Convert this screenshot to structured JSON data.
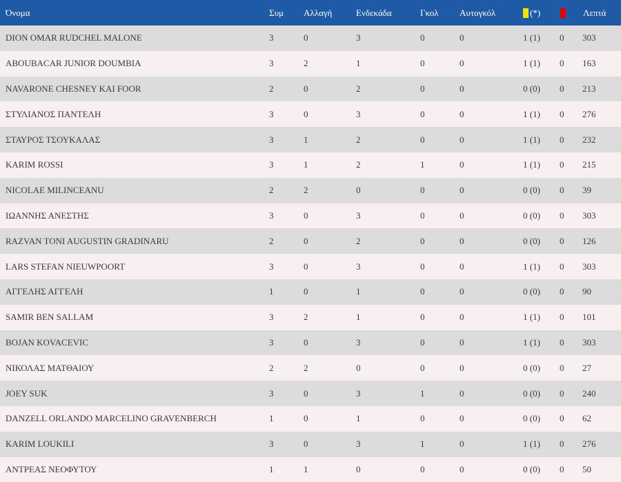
{
  "columns": {
    "name": "Όνομα",
    "apps": "Συμ",
    "sub": "Αλλαγή",
    "start": "Ενδεκάδα",
    "goals": "Γκολ",
    "own_goals": "Αυτογκόλ",
    "yellow_suffix": "(*)",
    "yellow_icon": "yellow-card-icon",
    "red_icon": "red-card-icon",
    "minutes": "Λεπτά"
  },
  "colors": {
    "header_bg": "#1e5aa6",
    "row_even": "#dcdcdc",
    "row_odd": "#f8eff0",
    "yellow_card": "#f0e400",
    "red_card": "#e60000"
  },
  "players": [
    {
      "name": "DION OMAR RUDCHEL MALONE",
      "apps": "3",
      "sub": "0",
      "start": "3",
      "goals": "0",
      "own": "0",
      "yellow": "1 (1)",
      "red": "0",
      "min": "303"
    },
    {
      "name": "ABOUBACAR JUNIOR DOUMBIA",
      "apps": "3",
      "sub": "2",
      "start": "1",
      "goals": "0",
      "own": "0",
      "yellow": "1 (1)",
      "red": "0",
      "min": "163"
    },
    {
      "name": "NAVARONE CHESNEY KAI FOOR",
      "apps": "2",
      "sub": "0",
      "start": "2",
      "goals": "0",
      "own": "0",
      "yellow": "0 (0)",
      "red": "0",
      "min": "213"
    },
    {
      "name": "ΣΤΥΛΙΑΝΟΣ ΠΑΝΤΕΛΗ",
      "apps": "3",
      "sub": "0",
      "start": "3",
      "goals": "0",
      "own": "0",
      "yellow": "1 (1)",
      "red": "0",
      "min": "276"
    },
    {
      "name": "ΣΤΑΥΡΟΣ ΤΣΟΥΚΑΛΑΣ",
      "apps": "3",
      "sub": "1",
      "start": "2",
      "goals": "0",
      "own": "0",
      "yellow": "1 (1)",
      "red": "0",
      "min": "232"
    },
    {
      "name": "KARIM ROSSI",
      "apps": "3",
      "sub": "1",
      "start": "2",
      "goals": "1",
      "own": "0",
      "yellow": "1 (1)",
      "red": "0",
      "min": "215"
    },
    {
      "name": "NICOLAE MILINCEANU",
      "apps": "2",
      "sub": "2",
      "start": "0",
      "goals": "0",
      "own": "0",
      "yellow": "0 (0)",
      "red": "0",
      "min": "39"
    },
    {
      "name": "ΙΩΑΝΝΗΣ ΑΝΕΣΤΗΣ",
      "apps": "3",
      "sub": "0",
      "start": "3",
      "goals": "0",
      "own": "0",
      "yellow": "0 (0)",
      "red": "0",
      "min": "303"
    },
    {
      "name": "RAZVAN TONI AUGUSTIN GRADINARU",
      "apps": "2",
      "sub": "0",
      "start": "2",
      "goals": "0",
      "own": "0",
      "yellow": "0 (0)",
      "red": "0",
      "min": "126"
    },
    {
      "name": "LARS STEFAN NIEUWPOORT",
      "apps": "3",
      "sub": "0",
      "start": "3",
      "goals": "0",
      "own": "0",
      "yellow": "1 (1)",
      "red": "0",
      "min": "303"
    },
    {
      "name": "ΑΓΓΕΛΗΣ ΑΓΓΕΛΗ",
      "apps": "1",
      "sub": "0",
      "start": "1",
      "goals": "0",
      "own": "0",
      "yellow": "0 (0)",
      "red": "0",
      "min": "90"
    },
    {
      "name": "SAMIR BEN SALLAM",
      "apps": "3",
      "sub": "2",
      "start": "1",
      "goals": "0",
      "own": "0",
      "yellow": "1 (1)",
      "red": "0",
      "min": "101"
    },
    {
      "name": "BOJAN KOVACEVIC",
      "apps": "3",
      "sub": "0",
      "start": "3",
      "goals": "0",
      "own": "0",
      "yellow": "1 (1)",
      "red": "0",
      "min": "303"
    },
    {
      "name": "ΝΙΚΟΛΑΣ ΜΑΤΘΑΙΟΥ",
      "apps": "2",
      "sub": "2",
      "start": "0",
      "goals": "0",
      "own": "0",
      "yellow": "0 (0)",
      "red": "0",
      "min": "27"
    },
    {
      "name": "JOEY SUK",
      "apps": "3",
      "sub": "0",
      "start": "3",
      "goals": "1",
      "own": "0",
      "yellow": "0 (0)",
      "red": "0",
      "min": "240"
    },
    {
      "name": "DANZELL ORLANDO MARCELINO GRAVENBERCH",
      "apps": "1",
      "sub": "0",
      "start": "1",
      "goals": "0",
      "own": "0",
      "yellow": "0 (0)",
      "red": "0",
      "min": "62"
    },
    {
      "name": "KARIM LOUKILI",
      "apps": "3",
      "sub": "0",
      "start": "3",
      "goals": "1",
      "own": "0",
      "yellow": "1 (1)",
      "red": "0",
      "min": "276"
    },
    {
      "name": "ΑΝΤΡΕΑΣ ΝΕΟΦΥΤΟΥ",
      "apps": "1",
      "sub": "1",
      "start": "0",
      "goals": "0",
      "own": "0",
      "yellow": "0 (0)",
      "red": "0",
      "min": "50"
    }
  ]
}
